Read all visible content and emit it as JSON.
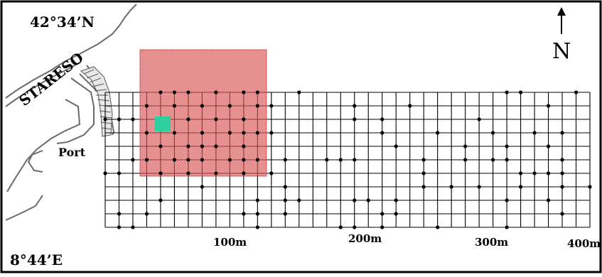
{
  "map": {
    "latitude_label": "42°34’N",
    "longitude_label": "8°44’E",
    "place_label": "STARESO",
    "port_label": "Port",
    "north_label": "N",
    "scale_labels": [
      "100m",
      "200m",
      "300m",
      "400m"
    ],
    "colors": {
      "study_area": "#d04040",
      "highlight_cell": "#2fcf9f",
      "grid": "#000000",
      "coast": "#6a6a6a"
    }
  }
}
